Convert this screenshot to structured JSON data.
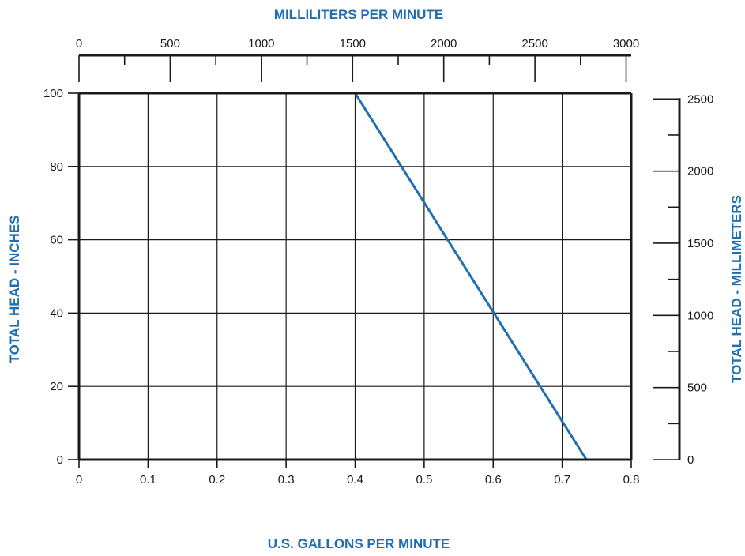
{
  "colors": {
    "accent": "#1F6FB2",
    "axis": "#1a1a1a",
    "grid": "#1a1a1a",
    "background": "#ffffff"
  },
  "chart_data": {
    "type": "line",
    "x_axis": {
      "label": "U.S. GALLONS PER MINUTE",
      "range": [
        0,
        0.8
      ],
      "ticks": [
        "0",
        "0.1",
        "0.2",
        "0.3",
        "0.4",
        "0.5",
        "0.6",
        "0.7",
        "0.8"
      ],
      "tick_values": [
        0,
        0.1,
        0.2,
        0.3,
        0.4,
        0.5,
        0.6,
        0.7,
        0.8
      ]
    },
    "y_axis": {
      "label": "TOTAL HEAD - INCHES",
      "range": [
        0,
        100
      ],
      "ticks": [
        "0",
        "20",
        "40",
        "60",
        "80",
        "100"
      ],
      "tick_values": [
        0,
        20,
        40,
        60,
        80,
        100
      ]
    },
    "x2_axis": {
      "label": "MILLILITERS PER MINUTE",
      "range": [
        0,
        3028
      ],
      "ticks": [
        "0",
        "500",
        "1000",
        "1500",
        "2000",
        "2500",
        "3000"
      ],
      "tick_values": [
        0,
        500,
        1000,
        1500,
        2000,
        2500,
        3000
      ],
      "minor_tick_values": [
        250,
        750,
        1250,
        1750,
        2250,
        2750
      ]
    },
    "y2_axis": {
      "label": "TOTAL HEAD - MILLIMETERS",
      "range": [
        0,
        2540
      ],
      "ticks": [
        "0",
        "500",
        "1000",
        "1500",
        "2000",
        "2500"
      ],
      "tick_values": [
        0,
        500,
        1000,
        1500,
        2000,
        2500
      ],
      "minor_tick_values": [
        250,
        750,
        1250,
        1750,
        2250
      ]
    },
    "grid": true,
    "series": [
      {
        "color": "#1F6FB2",
        "x": [
          0.4,
          0.735
        ],
        "y": [
          100,
          0
        ]
      }
    ]
  }
}
